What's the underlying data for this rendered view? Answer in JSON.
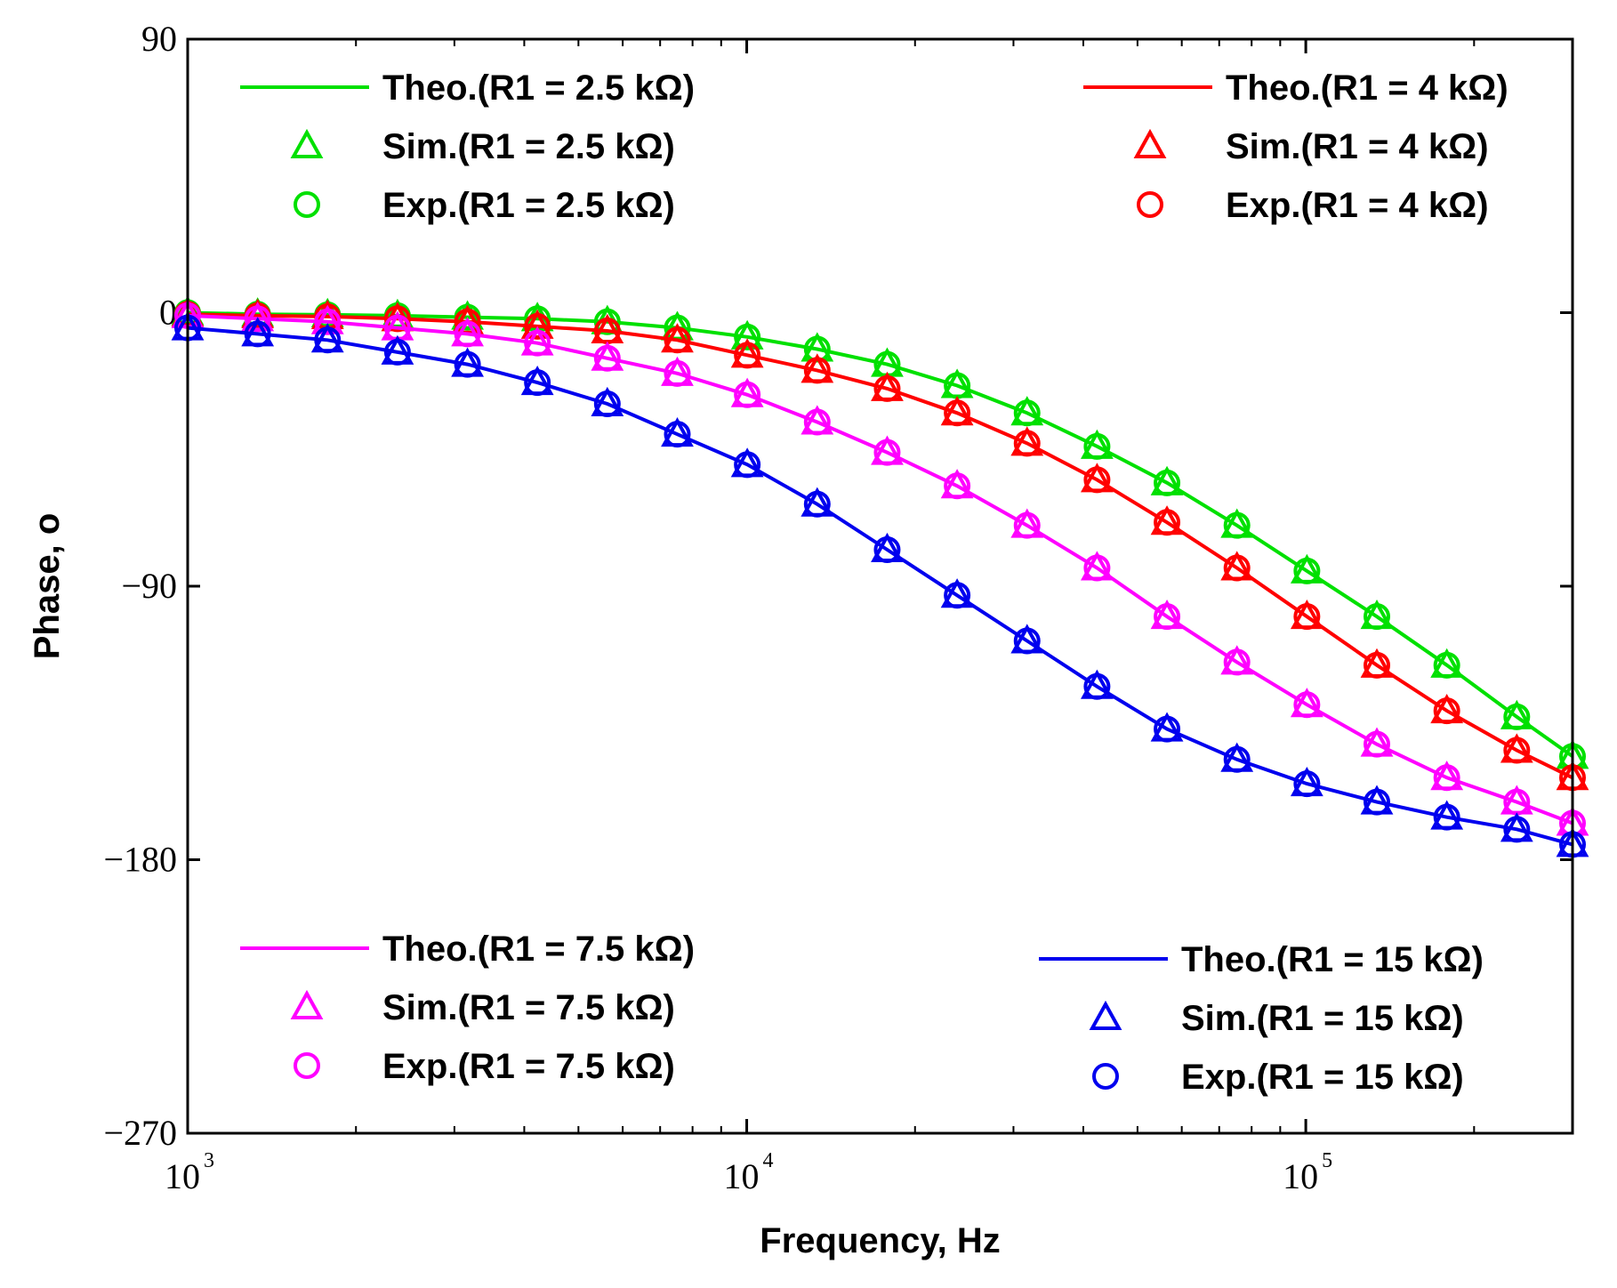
{
  "chart_data": {
    "type": "line",
    "title": "",
    "xlabel": "Frequency, Hz",
    "ylabel": "Phase, o",
    "xscale": "log",
    "xlim": [
      1000,
      300000
    ],
    "ylim": [
      -270,
      90
    ],
    "grid": false,
    "yticks": [
      {
        "value": 90,
        "label": "90"
      },
      {
        "value": 0,
        "label": "0"
      },
      {
        "value": -90,
        "label": "−90"
      },
      {
        "value": -180,
        "label": "−180"
      },
      {
        "value": -270,
        "label": "−270"
      }
    ],
    "xticks": [
      {
        "value": 1000,
        "base": "10",
        "exp": "3"
      },
      {
        "value": 10000,
        "base": "10",
        "exp": "4"
      },
      {
        "value": 100000,
        "base": "10",
        "exp": "5"
      }
    ],
    "x": [
      1000,
      1334,
      1779,
      2373,
      3166,
      4222,
      5632,
      7513,
      10022,
      13369,
      17833,
      23788,
      31730,
      42325,
      56459,
      75312,
      100461,
      134009,
      178758,
      238451,
      300000
    ],
    "series": [
      {
        "key": "g",
        "color": "#00e000",
        "legend": {
          "theo": "Theo.(R1 = 2.5 kΩ)",
          "sim": "Sim.(R1 = 2.5 kΩ)",
          "exp": "Exp.(R1 = 2.5 kΩ)"
        },
        "placement": "top-left",
        "values": [
          0,
          -0.5,
          -0.7,
          -1.0,
          -1.5,
          -2,
          -3,
          -5,
          -8,
          -12,
          -17,
          -24,
          -33,
          -44,
          -56,
          -70,
          -85,
          -100,
          -116,
          -133,
          -146
        ]
      },
      {
        "key": "r",
        "color": "#ff0000",
        "legend": {
          "theo": "Theo.(R1 = 4 kΩ)",
          "sim": "Sim.(R1 = 4 kΩ)",
          "exp": "Exp.(R1 = 4 kΩ)"
        },
        "placement": "top-right",
        "values": [
          -0.5,
          -1,
          -1.3,
          -2,
          -3,
          -4.5,
          -6,
          -9,
          -14,
          -19,
          -25,
          -33,
          -43,
          -55,
          -69,
          -84,
          -100,
          -116,
          -131,
          -144,
          -153
        ]
      },
      {
        "key": "m",
        "color": "#ff00ff",
        "legend": {
          "theo": "Theo.(R1 = 7.5 kΩ)",
          "sim": "Sim.(R1 = 7.5 kΩ)",
          "exp": "Exp.(R1 = 7.5 kΩ)"
        },
        "placement": "bottom-left",
        "values": [
          -1,
          -2,
          -3,
          -5,
          -7,
          -10,
          -15,
          -20,
          -27,
          -36,
          -46,
          -57,
          -70,
          -84,
          -100,
          -115,
          -129,
          -142,
          -153,
          -161,
          -168
        ]
      },
      {
        "key": "b",
        "color": "#0000ee",
        "legend": {
          "theo": "Theo.(R1 = 15 kΩ)",
          "sim": "Sim.(R1 = 15 kΩ)",
          "exp": "Exp.(R1 = 15 kΩ)"
        },
        "placement": "bottom-right",
        "values": [
          -5,
          -7,
          -9,
          -13,
          -17,
          -23,
          -30,
          -40,
          -50,
          -63,
          -78,
          -93,
          -108,
          -123,
          -137,
          -147,
          -155,
          -161,
          -166,
          -170,
          -175
        ]
      }
    ]
  }
}
